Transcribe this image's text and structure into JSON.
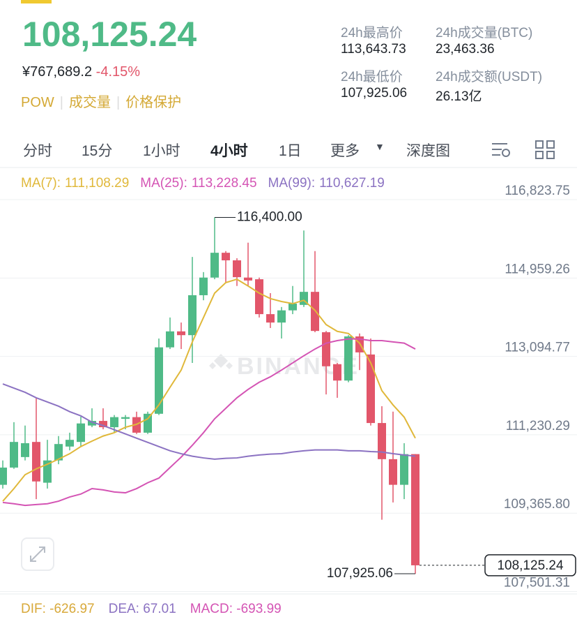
{
  "header": {
    "price": "108,125.24",
    "cny": "¥767,689.2",
    "change": "-4.15%",
    "tags": [
      "POW",
      "成交量",
      "价格保护"
    ],
    "stats": [
      {
        "label": "24h最高价",
        "value": "113,643.73"
      },
      {
        "label": "24h成交量(BTC)",
        "value": "23,463.36"
      },
      {
        "label": "24h最低价",
        "value": "107,925.06"
      },
      {
        "label": "24h成交额(USDT)",
        "value": "26.13亿"
      }
    ]
  },
  "tabs": [
    "分时",
    "15分",
    "1小时",
    "4小时",
    "1日",
    "更多",
    "深度图"
  ],
  "chart_data": {
    "type": "candlestick",
    "watermark": "BINANCE",
    "up_color": "#4fba87",
    "down_color": "#e2566a",
    "ylim": [
      107460,
      117505
    ],
    "yticks": [
      {
        "value": 116823.75,
        "label": "116,823.75"
      },
      {
        "value": 114959.26,
        "label": "114,959.26"
      },
      {
        "value": 113094.77,
        "label": "113,094.77"
      },
      {
        "value": 111230.29,
        "label": "111,230.29"
      },
      {
        "value": 109365.8,
        "label": "109,365.80"
      },
      {
        "value": 107501.31,
        "label": "107,501.31"
      }
    ],
    "grid": true,
    "high_label": "116,400.00",
    "low_label": "107,925.06",
    "last_label": "108,125.24",
    "candles": [
      {
        "open": 110040,
        "high": 110620,
        "low": 109950,
        "close": 110450
      },
      {
        "open": 110450,
        "high": 111530,
        "low": 110420,
        "close": 111060
      },
      {
        "open": 110700,
        "high": 111450,
        "low": 110620,
        "close": 111030
      },
      {
        "open": 111060,
        "high": 112110,
        "low": 109700,
        "close": 110120
      },
      {
        "open": 110090,
        "high": 111110,
        "low": 109950,
        "close": 110620
      },
      {
        "open": 110620,
        "high": 111200,
        "low": 110530,
        "close": 111010
      },
      {
        "open": 110950,
        "high": 111280,
        "low": 110860,
        "close": 111110
      },
      {
        "open": 111060,
        "high": 111660,
        "low": 110950,
        "close": 111500
      },
      {
        "open": 111450,
        "high": 111860,
        "low": 111410,
        "close": 111560
      },
      {
        "open": 111560,
        "high": 111860,
        "low": 111360,
        "close": 111410
      },
      {
        "open": 111410,
        "high": 111700,
        "low": 111280,
        "close": 111650
      },
      {
        "open": 111610,
        "high": 111700,
        "low": 111360,
        "close": 111650
      },
      {
        "open": 111650,
        "high": 111780,
        "low": 111250,
        "close": 111280
      },
      {
        "open": 111280,
        "high": 111780,
        "low": 111250,
        "close": 111730
      },
      {
        "open": 111730,
        "high": 113520,
        "low": 111700,
        "close": 113310
      },
      {
        "open": 113310,
        "high": 114020,
        "low": 113270,
        "close": 113690
      },
      {
        "open": 113690,
        "high": 113900,
        "low": 113270,
        "close": 113600
      },
      {
        "open": 113600,
        "high": 115460,
        "low": 112940,
        "close": 114550
      },
      {
        "open": 114550,
        "high": 115100,
        "low": 114430,
        "close": 114970
      },
      {
        "open": 114970,
        "high": 116400,
        "low": 114930,
        "close": 115560
      },
      {
        "open": 115560,
        "high": 115600,
        "low": 114850,
        "close": 115380
      },
      {
        "open": 115380,
        "high": 115430,
        "low": 114770,
        "close": 114980
      },
      {
        "open": 114970,
        "high": 115800,
        "low": 114770,
        "close": 114900
      },
      {
        "open": 114930,
        "high": 114970,
        "low": 114020,
        "close": 114100
      },
      {
        "open": 114100,
        "high": 114600,
        "low": 113770,
        "close": 113900
      },
      {
        "open": 113900,
        "high": 114270,
        "low": 113520,
        "close": 114190
      },
      {
        "open": 114190,
        "high": 114770,
        "low": 114100,
        "close": 114350
      },
      {
        "open": 114320,
        "high": 116090,
        "low": 114270,
        "close": 114630
      },
      {
        "open": 114630,
        "high": 115600,
        "low": 113670,
        "close": 113700
      },
      {
        "open": 113670,
        "high": 113700,
        "low": 112190,
        "close": 112860
      },
      {
        "open": 112910,
        "high": 112940,
        "low": 112110,
        "close": 112520
      },
      {
        "open": 112520,
        "high": 113600,
        "low": 112480,
        "close": 113570
      },
      {
        "open": 113570,
        "high": 113640,
        "low": 112770,
        "close": 113190
      },
      {
        "open": 113140,
        "high": 113520,
        "low": 111450,
        "close": 111510
      },
      {
        "open": 111510,
        "high": 111910,
        "low": 109210,
        "close": 110650
      },
      {
        "open": 110650,
        "high": 111780,
        "low": 109620,
        "close": 110040
      },
      {
        "open": 110040,
        "high": 111030,
        "low": 109700,
        "close": 110770
      },
      {
        "open": 110770,
        "high": 110770,
        "low": 107925.06,
        "close": 108125.24
      }
    ],
    "series": [
      {
        "name": "MA(7):",
        "current": "111,108.29",
        "color": "#e0b83a",
        "values": [
          109650,
          109950,
          110280,
          110420,
          110530,
          110650,
          110780,
          110950,
          111080,
          111200,
          111280,
          111410,
          111480,
          111610,
          111940,
          112360,
          112770,
          113440,
          114020,
          114600,
          114850,
          114930,
          114770,
          114600,
          114470,
          114400,
          114350,
          114430,
          114190,
          113850,
          113690,
          113640,
          113410,
          112940,
          112280,
          111940,
          111650,
          111150
        ]
      },
      {
        "name": "MA(25):",
        "current": "113,228.45",
        "color": "#d454b4",
        "values": [
          109620,
          109590,
          109550,
          109570,
          109590,
          109650,
          109750,
          109820,
          109950,
          109920,
          109870,
          109850,
          109950,
          110090,
          110200,
          110450,
          110700,
          110980,
          111280,
          111610,
          111860,
          112110,
          112310,
          112480,
          112610,
          112770,
          112940,
          113110,
          113270,
          113410,
          113470,
          113510,
          113510,
          113470,
          113470,
          113440,
          113410,
          113270
        ]
      },
      {
        "name": "MA(99):",
        "current": "110,627.19",
        "color": "#8b72c2",
        "values": [
          112440,
          112340,
          112240,
          112110,
          112010,
          111910,
          111780,
          111680,
          111530,
          111450,
          111350,
          111250,
          111150,
          111050,
          110950,
          110850,
          110780,
          110720,
          110680,
          110650,
          110670,
          110680,
          110720,
          110750,
          110770,
          110780,
          110820,
          110850,
          110870,
          110870,
          110870,
          110850,
          110850,
          110830,
          110820,
          110780,
          110750,
          110720
        ]
      }
    ]
  },
  "macd": [
    {
      "text": "DIF: -626.97",
      "color": "#d8a93a"
    },
    {
      "text": "DEA: 67.01",
      "color": "#8b72c2"
    },
    {
      "text": "MACD: -693.99",
      "color": "#d454b4"
    }
  ]
}
